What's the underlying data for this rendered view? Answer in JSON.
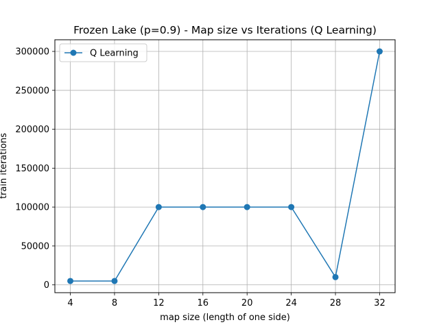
{
  "chart_data": {
    "type": "line",
    "title": "Frozen Lake (p=0.9) - Map size vs Iterations (Q Learning)",
    "xlabel": "map size (length of one side)",
    "ylabel": "train iterations",
    "x": [
      4,
      8,
      12,
      16,
      20,
      24,
      28,
      32
    ],
    "xticks": [
      4,
      8,
      12,
      16,
      20,
      24,
      28,
      32
    ],
    "xlim": [
      2.6,
      33.4
    ],
    "yticks": [
      0,
      50000,
      100000,
      150000,
      200000,
      250000,
      300000
    ],
    "ylim": [
      -10000,
      315000
    ],
    "grid": true,
    "legend": "top-left",
    "series": [
      {
        "name": "Q Learning",
        "color": "#1f77b4",
        "marker": "circle",
        "values": [
          5000,
          5000,
          100000,
          100000,
          100000,
          100000,
          10000,
          300000
        ]
      }
    ]
  }
}
